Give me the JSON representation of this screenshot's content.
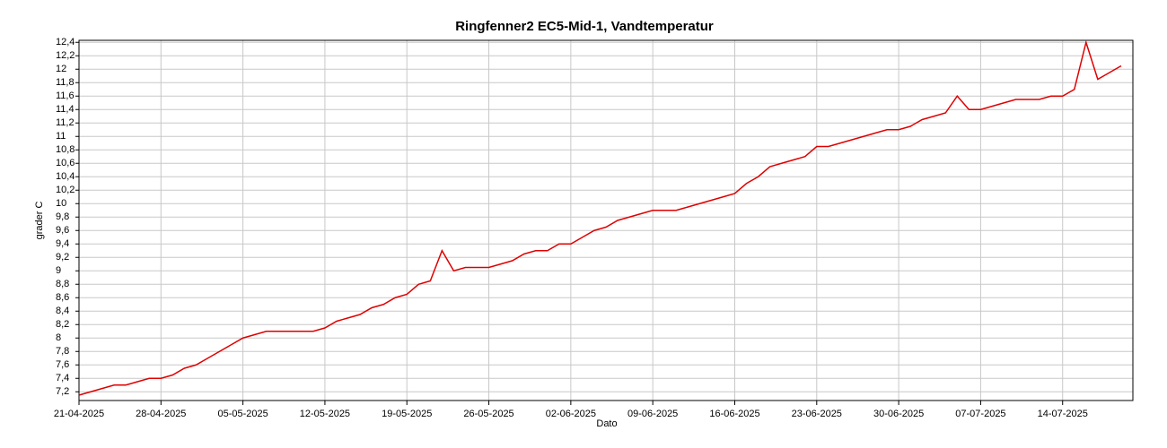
{
  "chart_data": {
    "type": "line",
    "title": "Ringfenner2 EC5-Mid-1, Vandtemperatur",
    "x_label": "Dato",
    "y_label": "grader C",
    "x": [
      "2025-04-21",
      "2025-04-22",
      "2025-04-23",
      "2025-04-24",
      "2025-04-25",
      "2025-04-26",
      "2025-04-27",
      "2025-04-28",
      "2025-04-29",
      "2025-04-30",
      "2025-05-01",
      "2025-05-02",
      "2025-05-03",
      "2025-05-04",
      "2025-05-05",
      "2025-05-06",
      "2025-05-07",
      "2025-05-08",
      "2025-05-09",
      "2025-05-10",
      "2025-05-11",
      "2025-05-12",
      "2025-05-13",
      "2025-05-14",
      "2025-05-15",
      "2025-05-16",
      "2025-05-17",
      "2025-05-18",
      "2025-05-19",
      "2025-05-20",
      "2025-05-21",
      "2025-05-22",
      "2025-05-23",
      "2025-05-24",
      "2025-05-25",
      "2025-05-26",
      "2025-05-27",
      "2025-05-28",
      "2025-05-29",
      "2025-05-30",
      "2025-05-31",
      "2025-06-01",
      "2025-06-02",
      "2025-06-03",
      "2025-06-04",
      "2025-06-05",
      "2025-06-06",
      "2025-06-07",
      "2025-06-08",
      "2025-06-09",
      "2025-06-10",
      "2025-06-11",
      "2025-06-12",
      "2025-06-13",
      "2025-06-14",
      "2025-06-15",
      "2025-06-16",
      "2025-06-17",
      "2025-06-18",
      "2025-06-19",
      "2025-06-20",
      "2025-06-21",
      "2025-06-22",
      "2025-06-23",
      "2025-06-24",
      "2025-06-25",
      "2025-06-26",
      "2025-06-27",
      "2025-06-28",
      "2025-06-29",
      "2025-06-30",
      "2025-07-01",
      "2025-07-02",
      "2025-07-03",
      "2025-07-04",
      "2025-07-05",
      "2025-07-06",
      "2025-07-07",
      "2025-07-08",
      "2025-07-09",
      "2025-07-10",
      "2025-07-11",
      "2025-07-12",
      "2025-07-13",
      "2025-07-14",
      "2025-07-15",
      "2025-07-16",
      "2025-07-17",
      "2025-07-18",
      "2025-07-19"
    ],
    "series": [
      {
        "name": "Vandtemperatur",
        "color": "#e00000",
        "values": [
          7.15,
          7.2,
          7.25,
          7.3,
          7.3,
          7.35,
          7.4,
          7.4,
          7.45,
          7.55,
          7.6,
          7.7,
          7.8,
          7.9,
          8.0,
          8.05,
          8.1,
          8.1,
          8.1,
          8.1,
          8.1,
          8.15,
          8.25,
          8.3,
          8.35,
          8.45,
          8.5,
          8.6,
          8.65,
          8.8,
          8.85,
          9.3,
          9.0,
          9.05,
          9.05,
          9.05,
          9.1,
          9.15,
          9.25,
          9.3,
          9.3,
          9.4,
          9.4,
          9.5,
          9.6,
          9.65,
          9.75,
          9.8,
          9.85,
          9.9,
          9.9,
          9.9,
          9.95,
          10.0,
          10.05,
          10.1,
          10.15,
          10.3,
          10.4,
          10.55,
          10.6,
          10.65,
          10.7,
          10.85,
          10.85,
          10.9,
          10.95,
          11.0,
          11.05,
          11.1,
          11.1,
          11.15,
          11.25,
          11.3,
          11.35,
          11.6,
          11.4,
          11.4,
          11.45,
          11.5,
          11.55,
          11.55,
          11.55,
          11.6,
          11.6,
          11.7,
          12.4,
          11.85,
          11.95,
          12.05
        ]
      }
    ],
    "xlim": [
      "2025-04-21",
      "2025-07-20"
    ],
    "xticks": [
      {
        "value": "2025-04-21",
        "label": "21-04-2025"
      },
      {
        "value": "2025-04-28",
        "label": "28-04-2025"
      },
      {
        "value": "2025-05-05",
        "label": "05-05-2025"
      },
      {
        "value": "2025-05-12",
        "label": "12-05-2025"
      },
      {
        "value": "2025-05-19",
        "label": "19-05-2025"
      },
      {
        "value": "2025-05-26",
        "label": "26-05-2025"
      },
      {
        "value": "2025-06-02",
        "label": "02-06-2025"
      },
      {
        "value": "2025-06-09",
        "label": "09-06-2025"
      },
      {
        "value": "2025-06-16",
        "label": "16-06-2025"
      },
      {
        "value": "2025-06-23",
        "label": "23-06-2025"
      },
      {
        "value": "2025-06-30",
        "label": "30-06-2025"
      },
      {
        "value": "2025-07-07",
        "label": "07-07-2025"
      },
      {
        "value": "2025-07-14",
        "label": "14-07-2025"
      }
    ],
    "ylim": [
      7.07,
      12.43
    ],
    "yticks": [
      {
        "value": 7.2,
        "label": "7,2"
      },
      {
        "value": 7.4,
        "label": "7,4"
      },
      {
        "value": 7.6,
        "label": "7,6"
      },
      {
        "value": 7.8,
        "label": "7,8"
      },
      8,
      {
        "value": 8.2,
        "label": "8,2"
      },
      {
        "value": 8.4,
        "label": "8,4"
      },
      {
        "value": 8.6,
        "label": "8,6"
      },
      {
        "value": 8.8,
        "label": "8,8"
      },
      9,
      {
        "value": 9.2,
        "label": "9,2"
      },
      {
        "value": 9.4,
        "label": "9,4"
      },
      {
        "value": 9.6,
        "label": "9,6"
      },
      {
        "value": 9.8,
        "label": "9,8"
      },
      10,
      {
        "value": 10.2,
        "label": "10,2"
      },
      {
        "value": 10.4,
        "label": "10,4"
      },
      {
        "value": 10.6,
        "label": "10,6"
      },
      {
        "value": 10.8,
        "label": "10,8"
      },
      11,
      {
        "value": 11.2,
        "label": "11,2"
      },
      {
        "value": 11.4,
        "label": "11,4"
      },
      {
        "value": 11.6,
        "label": "11,6"
      },
      {
        "value": 11.8,
        "label": "11,8"
      },
      12,
      {
        "value": 12.2,
        "label": "12,2"
      },
      {
        "value": 12.4,
        "label": "12,4"
      }
    ],
    "grid": true
  }
}
